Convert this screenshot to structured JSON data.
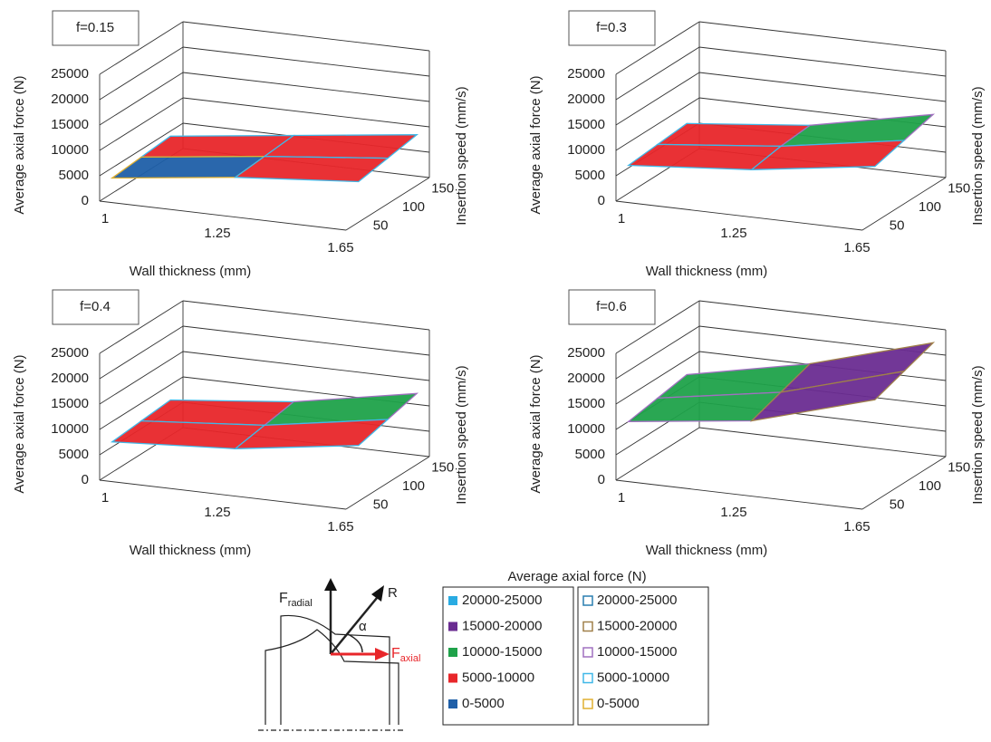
{
  "chart_data": [
    {
      "type": "surface3d",
      "title": "f=0.15",
      "x_label": "Wall thickness (mm)",
      "y_label": "Insertion speed (mm/s)",
      "z_label": "Average axial force (N)",
      "x_categories": [
        1,
        1.25,
        1.65
      ],
      "y_categories": [
        50,
        100,
        150
      ],
      "zlim": [
        0,
        25000
      ],
      "zticks": [
        0,
        5000,
        10000,
        15000,
        20000,
        25000
      ],
      "values": [
        [
          3000,
          6000,
          8000
        ],
        [
          3500,
          6500,
          9000
        ],
        [
          4000,
          7000,
          10000
        ]
      ]
    },
    {
      "type": "surface3d",
      "title": "f=0.3",
      "x_label": "Wall thickness (mm)",
      "y_label": "Insertion speed (mm/s)",
      "z_label": "Average axial force (N)",
      "x_categories": [
        1,
        1.25,
        1.65
      ],
      "y_categories": [
        50,
        100,
        150
      ],
      "zlim": [
        0,
        25000
      ],
      "zticks": [
        0,
        5000,
        10000,
        15000,
        20000,
        25000
      ],
      "values": [
        [
          5500,
          7500,
          11000
        ],
        [
          6000,
          8500,
          12500
        ],
        [
          6500,
          9000,
          14000
        ]
      ]
    },
    {
      "type": "surface3d",
      "title": "f=0.4",
      "x_label": "Wall thickness (mm)",
      "y_label": "Insertion speed (mm/s)",
      "z_label": "Average axial force (N)",
      "x_categories": [
        1,
        1.25,
        1.65
      ],
      "y_categories": [
        50,
        100,
        150
      ],
      "zlim": [
        0,
        25000
      ],
      "zticks": [
        0,
        5000,
        10000,
        15000,
        20000,
        25000
      ],
      "values": [
        [
          6000,
          7500,
          11000
        ],
        [
          6500,
          8500,
          12500
        ],
        [
          7000,
          9500,
          14000
        ]
      ]
    },
    {
      "type": "surface3d",
      "title": "f=0.6",
      "x_label": "Wall thickness (mm)",
      "y_label": "Insertion speed (mm/s)",
      "z_label": "Average axial force (N)",
      "x_categories": [
        1,
        1.25,
        1.65
      ],
      "y_categories": [
        50,
        100,
        150
      ],
      "zlim": [
        0,
        25000
      ],
      "zticks": [
        0,
        5000,
        10000,
        15000,
        20000,
        25000
      ],
      "values": [
        [
          10000,
          13000,
          20000
        ],
        [
          11000,
          15000,
          22000
        ],
        [
          12000,
          17000,
          24000
        ]
      ]
    }
  ],
  "legend": {
    "title": "Average axial force (N)",
    "fill_bands": [
      {
        "label": "20000-25000",
        "color": "#29abe2"
      },
      {
        "label": "15000-20000",
        "color": "#6a2c91"
      },
      {
        "label": "10000-15000",
        "color": "#1fa24a"
      },
      {
        "label": "5000-10000",
        "color": "#e8262a"
      },
      {
        "label": "0-5000",
        "color": "#1f5fa8"
      }
    ],
    "line_bands": [
      {
        "label": "20000-25000",
        "color": "#2a7fb0"
      },
      {
        "label": "15000-20000",
        "color": "#a0804a"
      },
      {
        "label": "10000-15000",
        "color": "#a070c0"
      },
      {
        "label": "5000-10000",
        "color": "#40b8e8"
      },
      {
        "label": "0-5000",
        "color": "#e0b030"
      }
    ]
  },
  "diagram": {
    "radial_force": {
      "symbol": "F",
      "subscript": "radial"
    },
    "resultant": "R",
    "angle": "α",
    "axial_force": {
      "symbol": "F",
      "subscript": "axial"
    }
  }
}
